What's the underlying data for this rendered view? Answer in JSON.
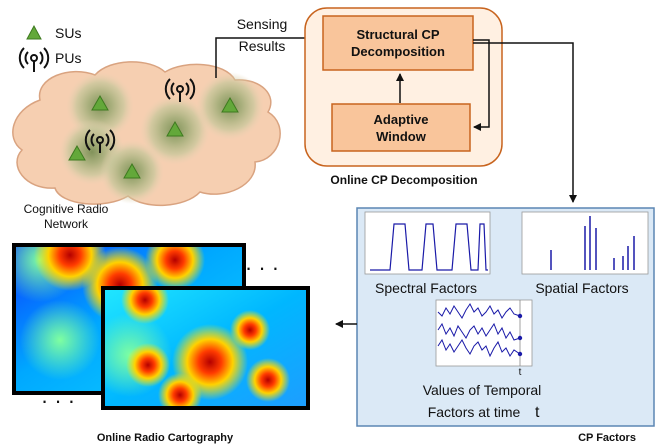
{
  "legend": {
    "su": "SUs",
    "pu": "PUs"
  },
  "network": {
    "label_line1": "Cognitive Radio",
    "label_line2": "Network"
  },
  "arrow": {
    "line1": "Sensing",
    "line2": "Results"
  },
  "online_cp": {
    "box1_line1": "Structural CP",
    "box1_line2": "Decomposition",
    "box2_line1": "Adaptive",
    "box2_line2": "Window",
    "caption": "Online CP Decomposition"
  },
  "cp_factors": {
    "spectral": "Spectral Factors",
    "spatial": "Spatial Factors",
    "temporal_line1": "Values of Temporal",
    "temporal_line2": "Factors at time",
    "temporal_t": "t",
    "axis_t": "t",
    "caption": "CP Factors"
  },
  "cartography": {
    "caption": "Online Radio Cartography",
    "dots": "· · ·"
  },
  "colors": {
    "orange_fill": "#f9c59b",
    "orange_stroke": "#c8641e",
    "orange_bg": "#fff0e2",
    "blue_panel": "#dbe9f6",
    "blue_stroke": "#5b86b4",
    "plot_line": "#1a1aa8",
    "su_green": "#63a83a",
    "cloud": "#f6cfb1"
  }
}
